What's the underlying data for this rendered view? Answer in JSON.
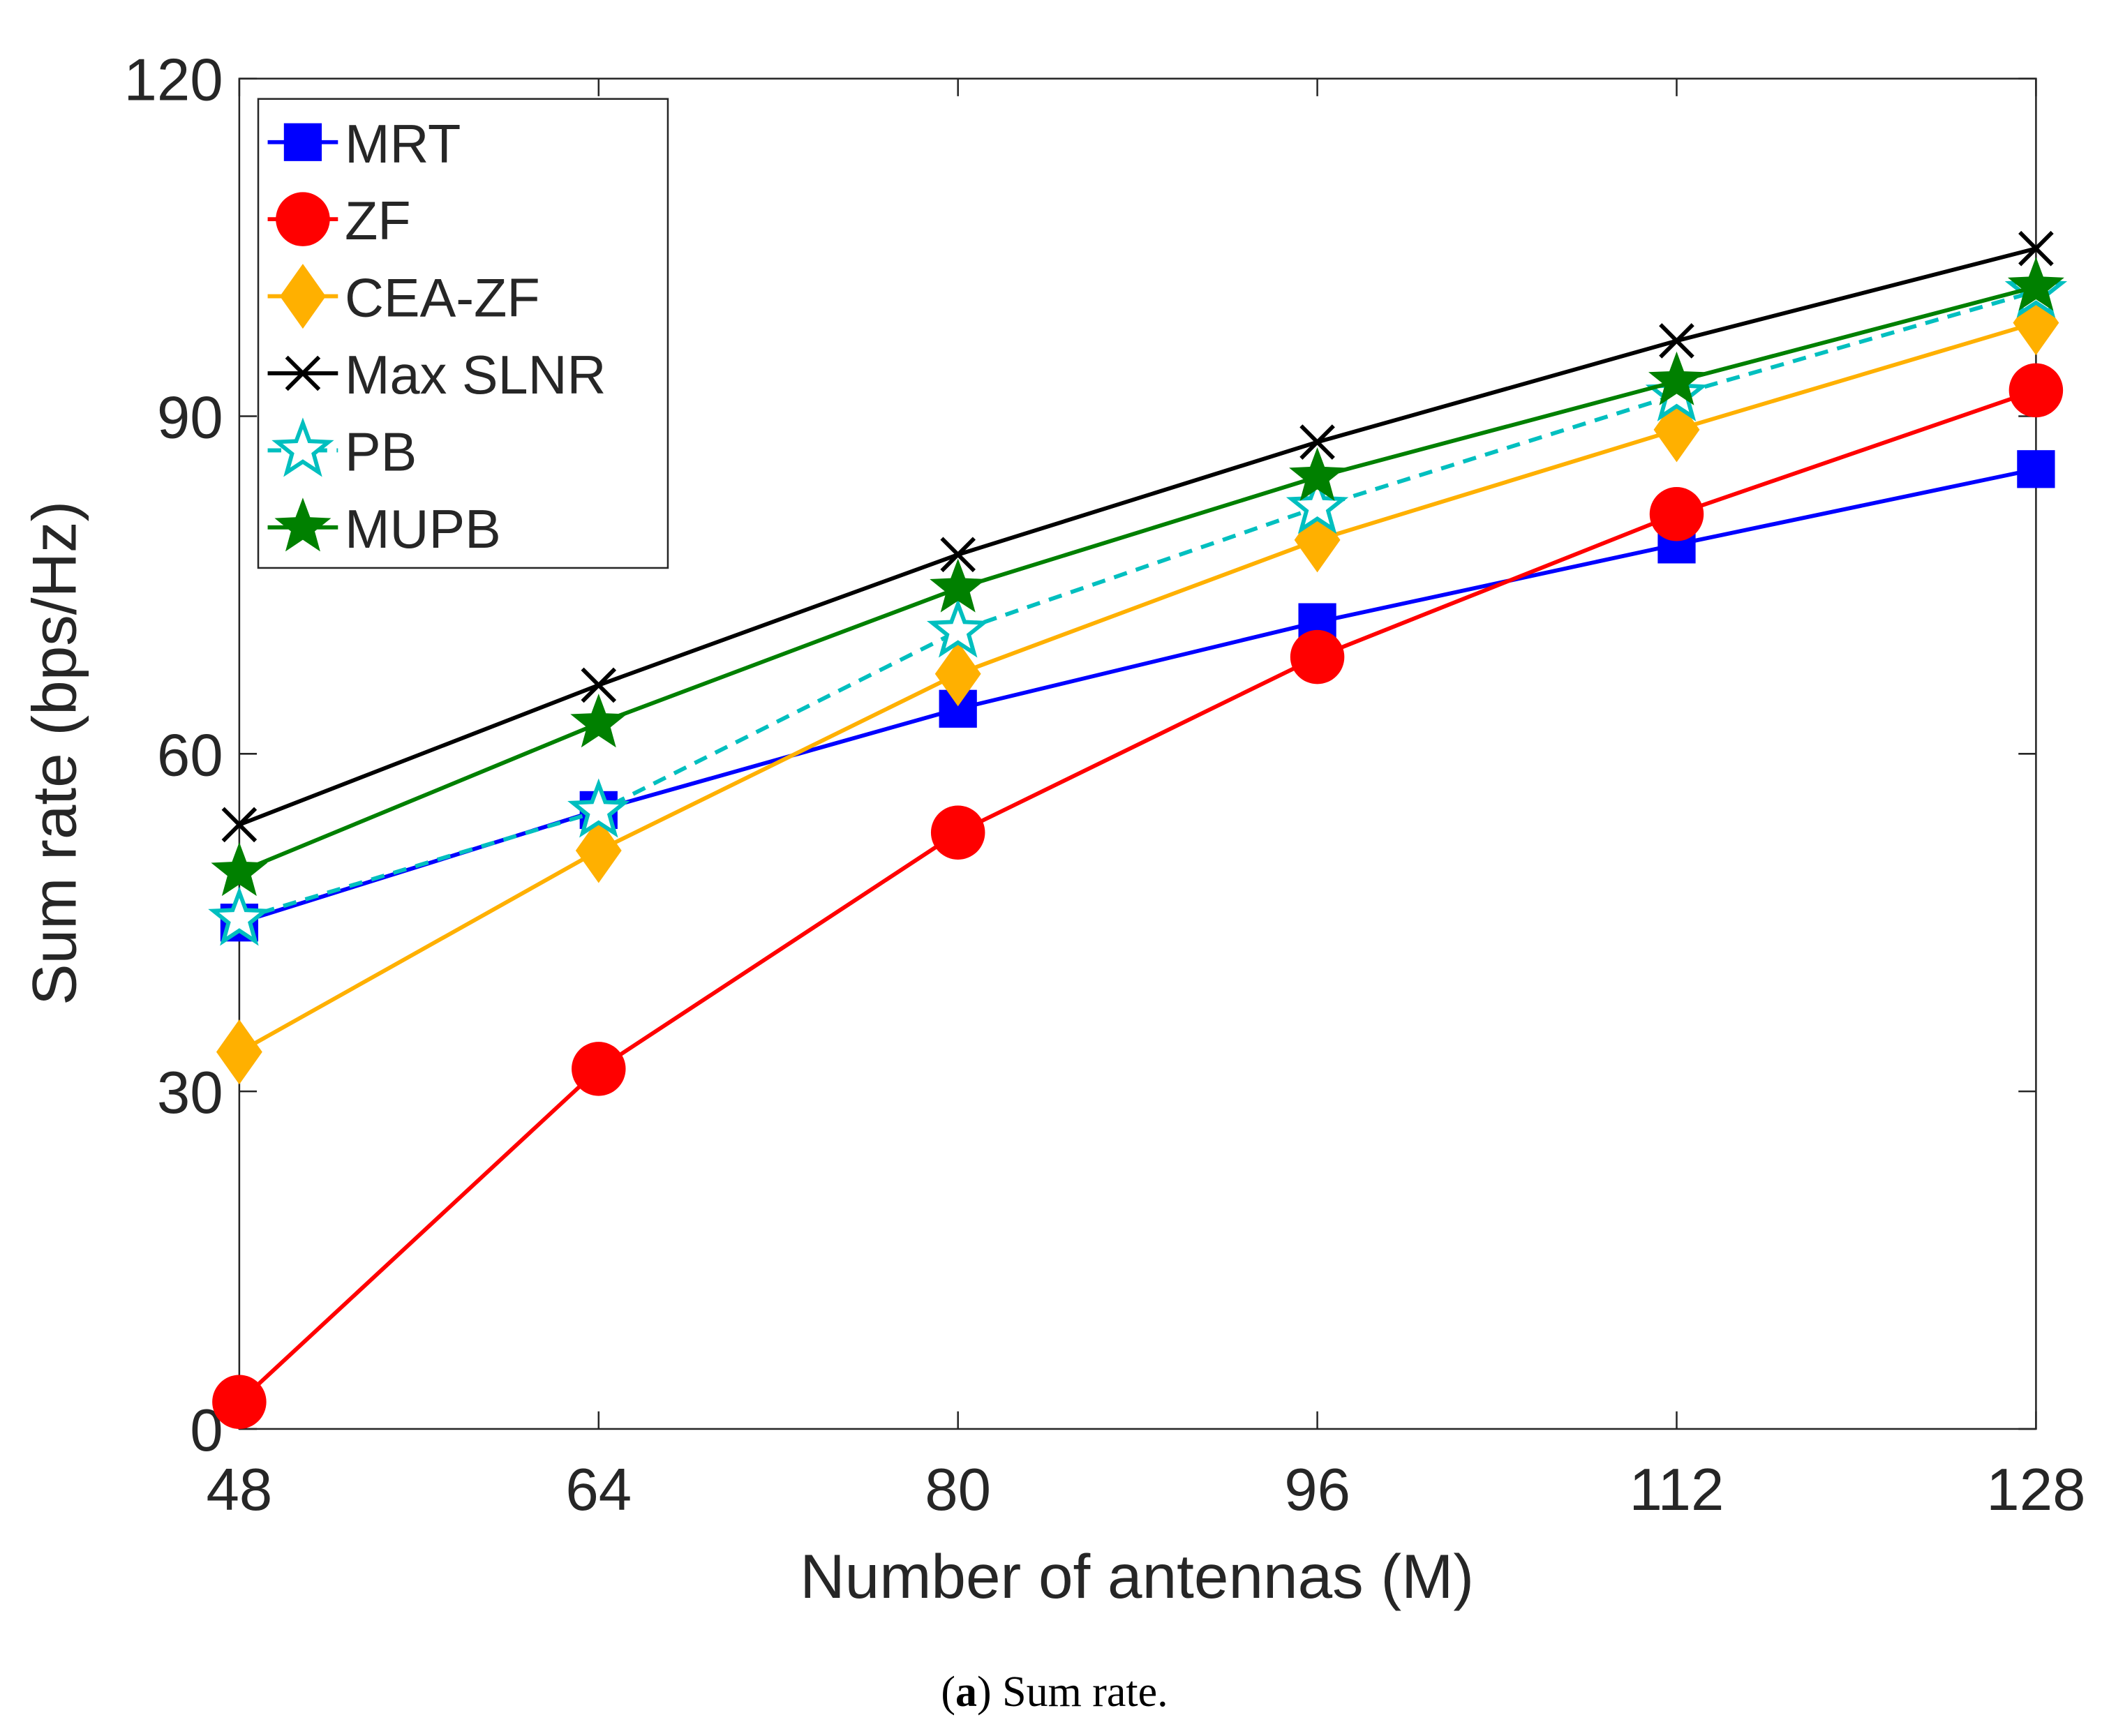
{
  "chart_data": {
    "type": "line",
    "title": "",
    "caption_label": "a",
    "caption_text": " Sum rate.",
    "xlabel": "Number of antennas (M)",
    "ylabel": "Sum rate (bps/Hz)",
    "x": [
      48,
      64,
      80,
      96,
      112,
      128
    ],
    "xlim": [
      48,
      128
    ],
    "ylim": [
      0,
      120
    ],
    "xticks": [
      "48",
      "64",
      "80",
      "96",
      "112",
      "128"
    ],
    "yticks": [
      "0",
      "30",
      "60",
      "90",
      "120"
    ],
    "grid": false,
    "legend_position": "top-left",
    "series": [
      {
        "name": "MRT",
        "color": "#0000ff",
        "marker": "square",
        "dashed": false,
        "values": [
          45,
          55,
          64,
          71.7,
          78.6,
          85.3
        ]
      },
      {
        "name": "ZF",
        "color": "#ff0000",
        "marker": "circle",
        "dashed": false,
        "values": [
          2.4,
          32,
          53,
          68.6,
          81.3,
          92.3
        ]
      },
      {
        "name": "CEA-ZF",
        "color": "#ffb000",
        "marker": "diamond",
        "dashed": false,
        "values": [
          33.5,
          51.4,
          67.1,
          79,
          88.8,
          98.3
        ]
      },
      {
        "name": "Max SLNR",
        "color": "#000000",
        "marker": "x",
        "dashed": false,
        "values": [
          53.7,
          66.1,
          77.7,
          87.7,
          96.7,
          104.9
        ]
      },
      {
        "name": "PB",
        "color": "#00bfbf",
        "marker": "star-open",
        "dashed": true,
        "values": [
          45.3,
          54.9,
          70.9,
          81.9,
          91.9,
          101.1
        ]
      },
      {
        "name": "MUPB",
        "color": "#008000",
        "marker": "star",
        "dashed": false,
        "values": [
          49.5,
          62.7,
          74.7,
          84.6,
          93.1,
          101.5
        ]
      }
    ]
  }
}
